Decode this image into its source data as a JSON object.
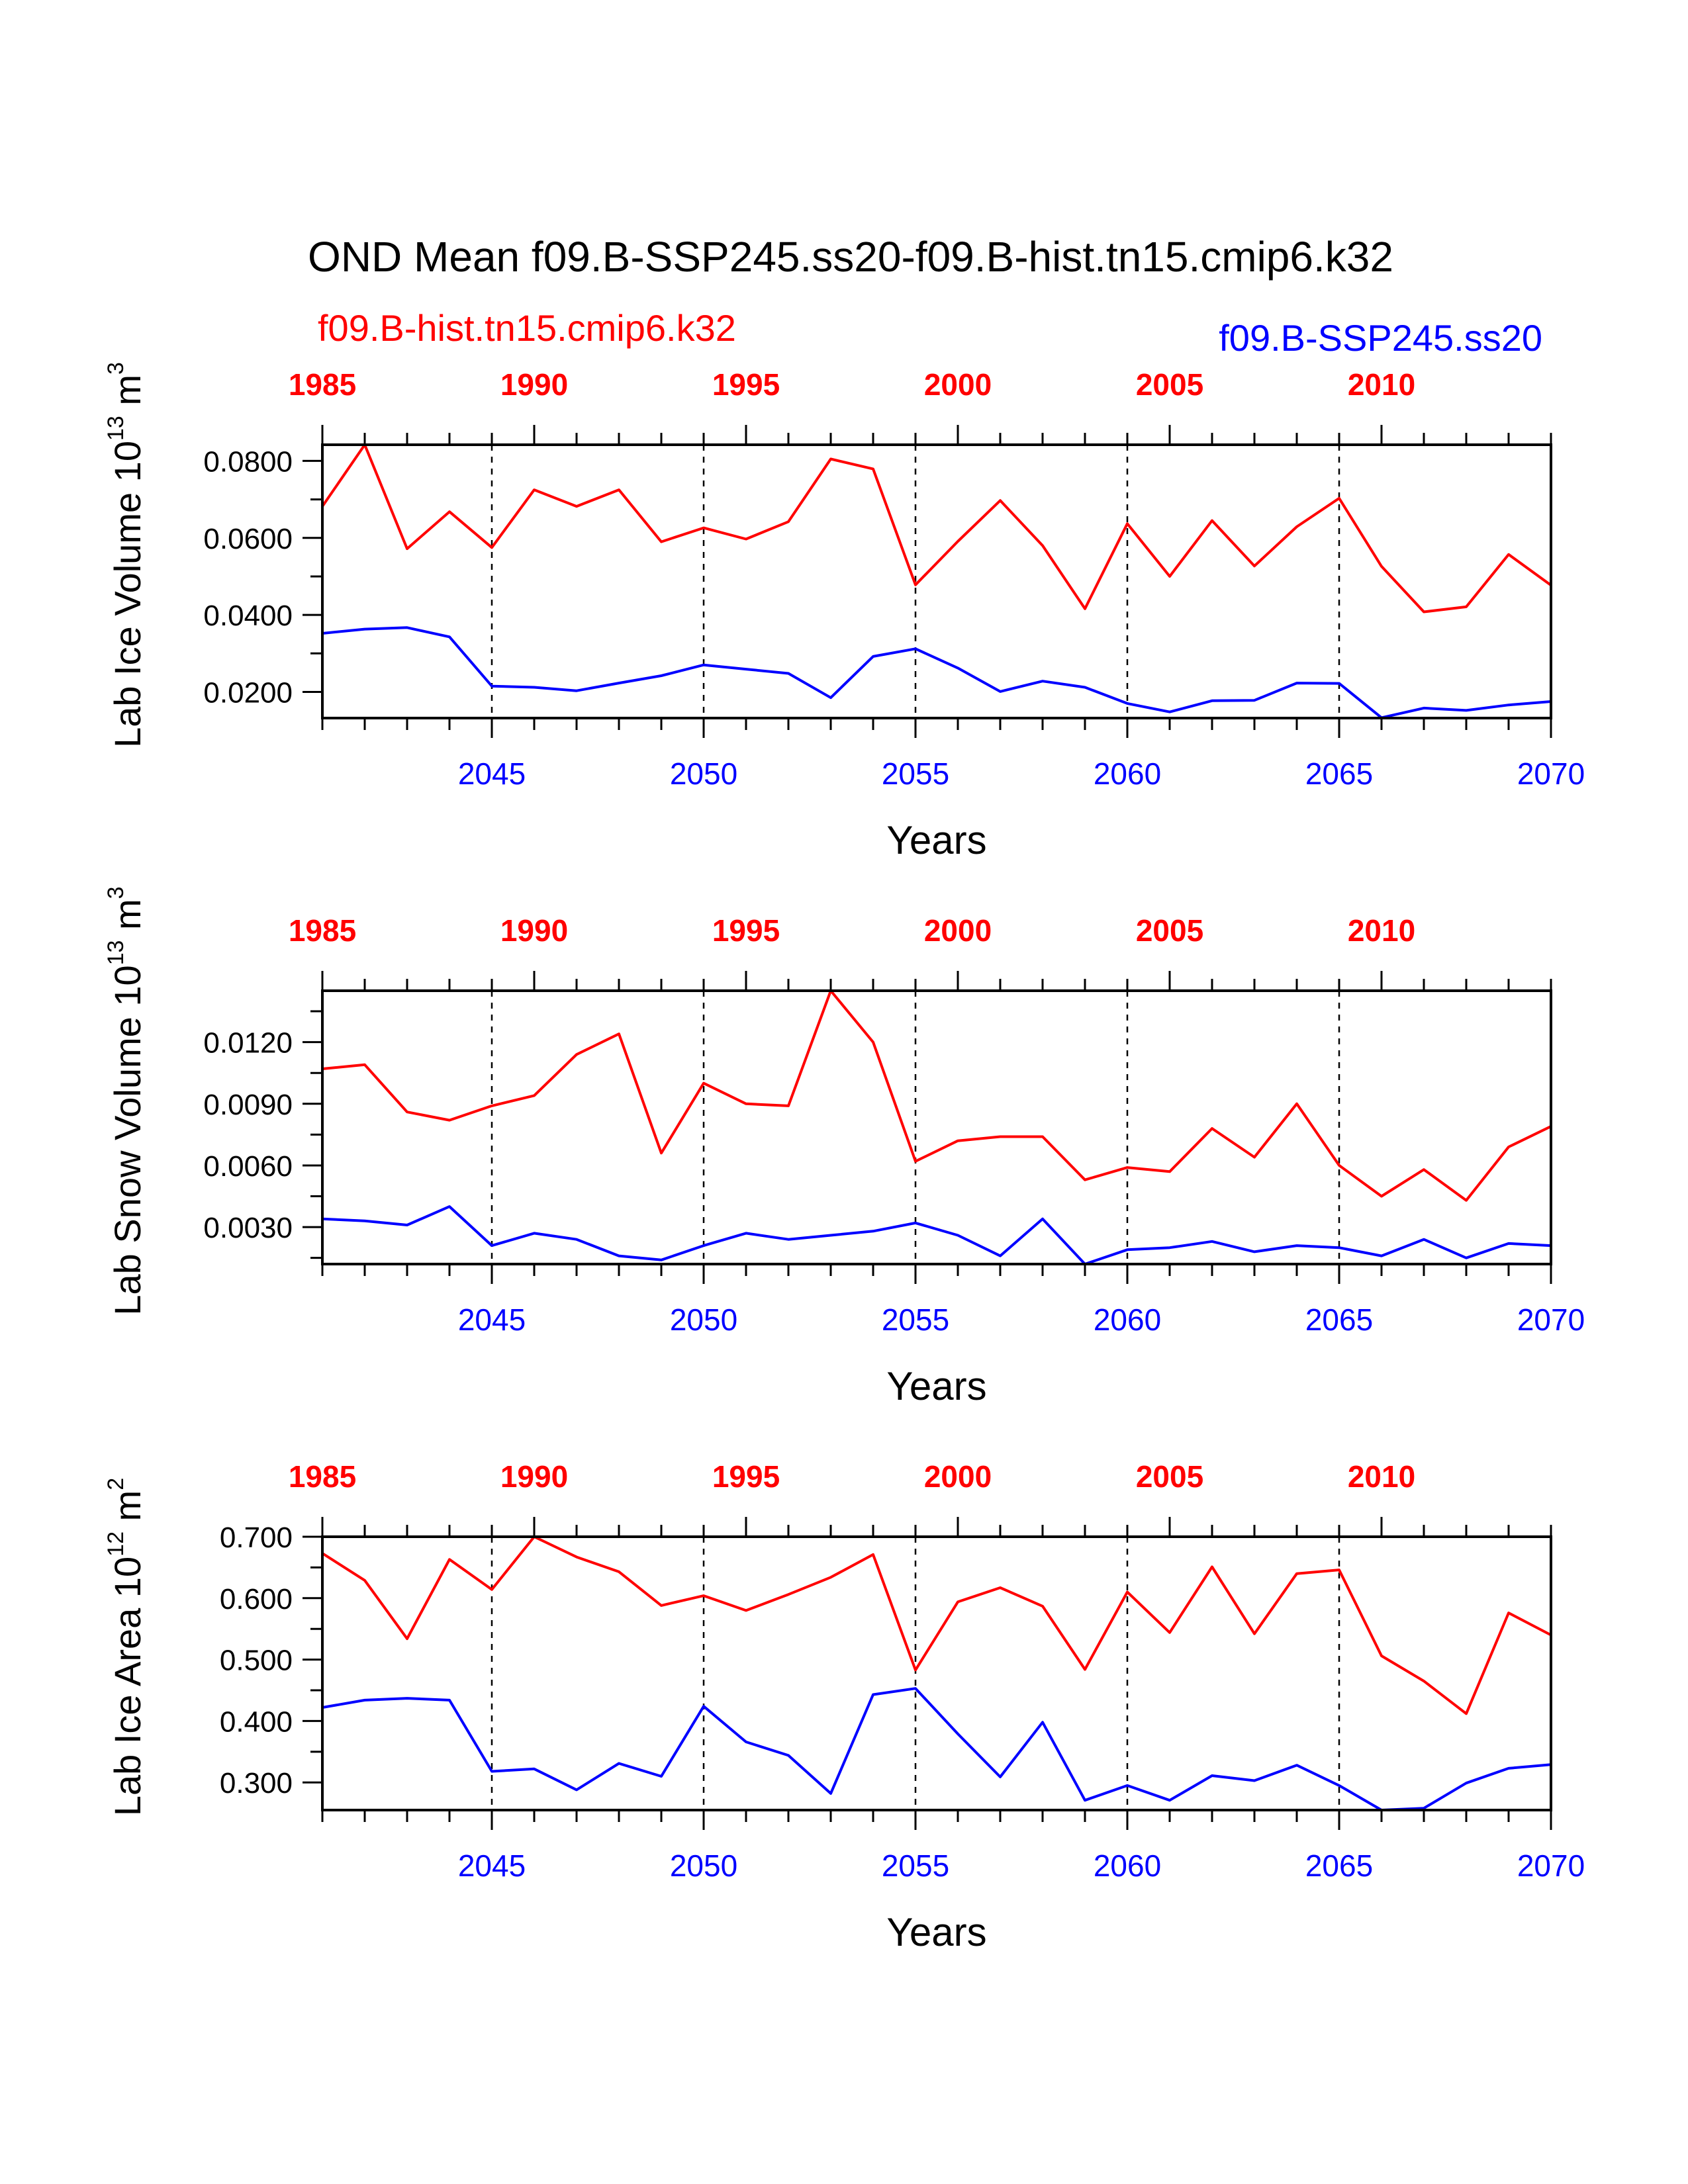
{
  "title": "OND Mean f09.B-SSP245.ss20-f09.B-hist.tn15.cmip6.k32",
  "legend": {
    "red_label": "f09.B-hist.tn15.cmip6.k32",
    "blue_label": "f09.B-SSP245.ss20"
  },
  "colors": {
    "red": "#ff0000",
    "blue": "#0000ff",
    "axis": "#000000"
  },
  "chart_data": [
    {
      "type": "line",
      "ylabel_main": "Lab Ice Volume 10",
      "ylabel_sup1": "13",
      "ylabel_mid": " m",
      "ylabel_sup2": "3",
      "xlabel": "Years",
      "x_bottom_range": [
        2041,
        2070
      ],
      "x_top_range": [
        1985,
        2014
      ],
      "x_bottom_ticks": [
        "2045",
        "2050",
        "2055",
        "2060",
        "2065",
        "2070"
      ],
      "x_top_ticks": [
        "1985",
        "1990",
        "1995",
        "2000",
        "2005",
        "2010"
      ],
      "ylim": [
        0.0132,
        0.0842
      ],
      "yticks": [
        "0.0200",
        "0.0400",
        "0.0600",
        "0.0800"
      ],
      "ytick_values": [
        0.02,
        0.04,
        0.06,
        0.08
      ],
      "series": [
        {
          "color": "red",
          "values": [
            0.0682,
            0.0842,
            0.0572,
            0.0668,
            0.0575,
            0.0725,
            0.0682,
            0.0725,
            0.059,
            0.0626,
            0.0597,
            0.0642,
            0.0805,
            0.0779,
            0.0478,
            0.0591,
            0.0697,
            0.058,
            0.0416,
            0.0637,
            0.05,
            0.0645,
            0.0527,
            0.0629,
            0.0703,
            0.0526,
            0.0408,
            0.0421,
            0.0557,
            0.0477
          ]
        },
        {
          "color": "blue",
          "values": [
            0.0352,
            0.0363,
            0.0367,
            0.0343,
            0.0215,
            0.0212,
            0.0203,
            0.0223,
            0.0242,
            0.027,
            0.0259,
            0.0248,
            0.0185,
            0.0292,
            0.0312,
            0.0262,
            0.0201,
            0.0228,
            0.0212,
            0.017,
            0.0148,
            0.0177,
            0.0178,
            0.0223,
            0.0222,
            0.0133,
            0.0158,
            0.0152,
            0.0166,
            0.0175
          ]
        }
      ]
    },
    {
      "type": "line",
      "ylabel_main": "Lab Snow Volume 10",
      "ylabel_sup1": "13",
      "ylabel_mid": " m",
      "ylabel_sup2": "3",
      "xlabel": "Years",
      "x_bottom_range": [
        2041,
        2070
      ],
      "x_top_range": [
        1985,
        2014
      ],
      "x_bottom_ticks": [
        "2045",
        "2050",
        "2055",
        "2060",
        "2065",
        "2070"
      ],
      "x_top_ticks": [
        "1985",
        "1990",
        "1995",
        "2000",
        "2005",
        "2010"
      ],
      "ylim": [
        0.0012,
        0.0145
      ],
      "yticks": [
        "0.0030",
        "0.0060",
        "0.0090",
        "0.0120"
      ],
      "ytick_values": [
        0.003,
        0.006,
        0.009,
        0.012
      ],
      "series": [
        {
          "color": "red",
          "values": [
            0.0107,
            0.0109,
            0.0086,
            0.0082,
            0.0089,
            0.0094,
            0.0114,
            0.0124,
            0.0066,
            0.01,
            0.009,
            0.0089,
            0.0145,
            0.012,
            0.0062,
            0.0072,
            0.0074,
            0.0074,
            0.0053,
            0.0059,
            0.0057,
            0.0078,
            0.0064,
            0.009,
            0.006,
            0.0045,
            0.0058,
            0.0043,
            0.0069,
            0.0079
          ]
        },
        {
          "color": "blue",
          "values": [
            0.0034,
            0.0033,
            0.0031,
            0.004,
            0.0021,
            0.0027,
            0.0024,
            0.0016,
            0.0014,
            0.0021,
            0.0027,
            0.0024,
            0.0026,
            0.0028,
            0.0032,
            0.0026,
            0.0016,
            0.0034,
            0.0012,
            0.0019,
            0.002,
            0.0023,
            0.0018,
            0.0021,
            0.002,
            0.0016,
            0.0024,
            0.0015,
            0.0022,
            0.0021
          ]
        }
      ]
    },
    {
      "type": "line",
      "ylabel_main": "Lab Ice Area 10",
      "ylabel_sup1": "12",
      "ylabel_mid": " m",
      "ylabel_sup2": "2",
      "xlabel": "Years",
      "x_bottom_range": [
        2041,
        2070
      ],
      "x_top_range": [
        1985,
        2014
      ],
      "x_bottom_ticks": [
        "2045",
        "2050",
        "2055",
        "2060",
        "2065",
        "2070"
      ],
      "x_top_ticks": [
        "1985",
        "1990",
        "1995",
        "2000",
        "2005",
        "2010"
      ],
      "ylim": [
        0.255,
        0.7
      ],
      "yticks": [
        "0.300",
        "0.400",
        "0.500",
        "0.600",
        "0.700"
      ],
      "ytick_values": [
        0.3,
        0.4,
        0.5,
        0.6,
        0.7
      ],
      "series": [
        {
          "color": "red",
          "values": [
            0.673,
            0.629,
            0.534,
            0.663,
            0.614,
            0.7,
            0.667,
            0.643,
            0.588,
            0.604,
            0.58,
            0.606,
            0.634,
            0.671,
            0.483,
            0.594,
            0.617,
            0.587,
            0.484,
            0.61,
            0.544,
            0.651,
            0.542,
            0.64,
            0.646,
            0.506,
            0.465,
            0.412,
            0.576,
            0.54
          ]
        },
        {
          "color": "blue",
          "values": [
            0.422,
            0.434,
            0.437,
            0.434,
            0.318,
            0.322,
            0.288,
            0.331,
            0.31,
            0.424,
            0.366,
            0.344,
            0.282,
            0.443,
            0.453,
            0.379,
            0.309,
            0.398,
            0.271,
            0.295,
            0.271,
            0.311,
            0.303,
            0.328,
            0.295,
            0.255,
            0.258,
            0.299,
            0.323,
            0.329
          ]
        }
      ]
    }
  ]
}
